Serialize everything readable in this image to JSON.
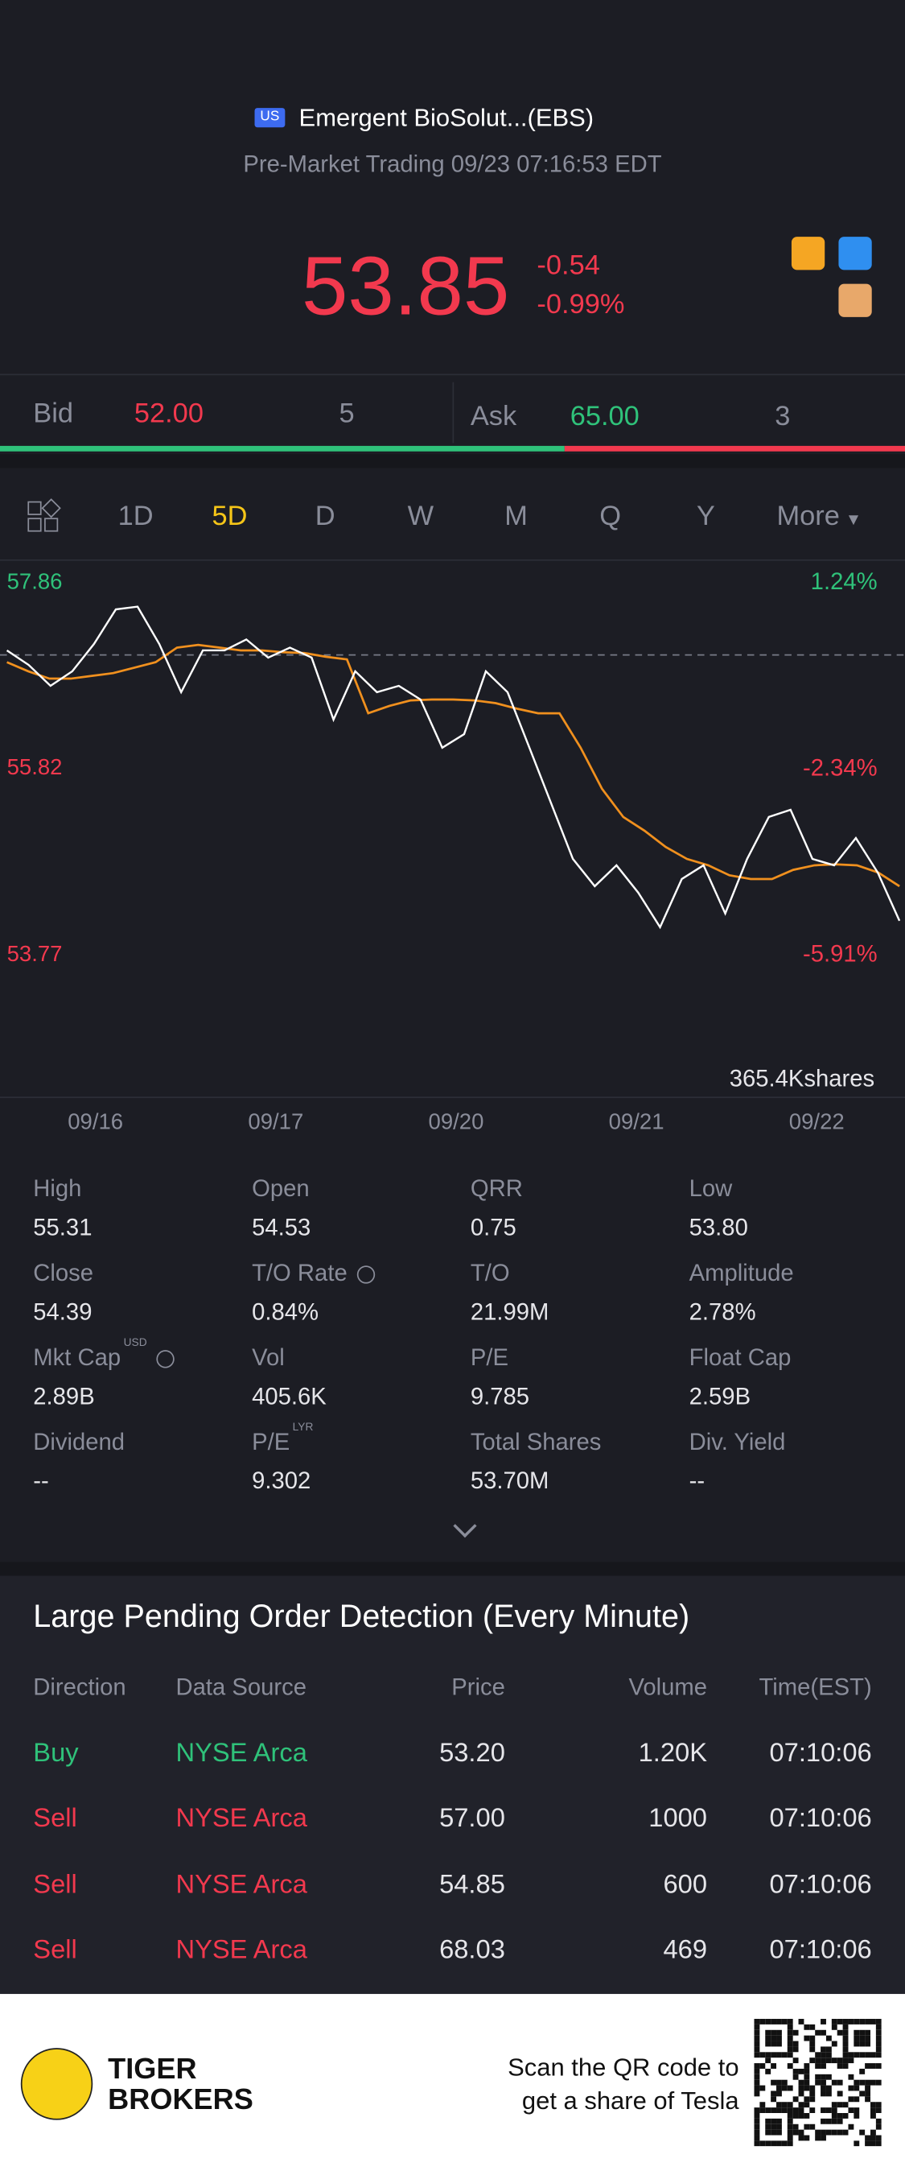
{
  "header": {
    "badge": "US",
    "name": "Emergent BioSolut...(EBS)",
    "status": "Pre-Market Trading 09/23 07:16:53 EDT"
  },
  "quote": {
    "price": "53.85",
    "change": "-0.54",
    "change_pct": "-0.99%"
  },
  "order_book": {
    "bid_label": "Bid",
    "bid_price": "52.00",
    "bid_size": "5",
    "ask_label": "Ask",
    "ask_price": "65.00",
    "ask_size": "3"
  },
  "tabs": {
    "items": [
      "1D",
      "5D",
      "D",
      "W",
      "M",
      "Q",
      "Y",
      "More"
    ],
    "active": 1
  },
  "chart_data": {
    "type": "line",
    "x_labels": [
      "09/16",
      "09/17",
      "09/20",
      "09/21",
      "09/22"
    ],
    "ylim": [
      53.77,
      57.86
    ],
    "yticks": [
      57.86,
      55.82,
      53.77
    ],
    "ytick_colors": [
      "#2fc27a",
      "#f2394e",
      "#f2394e"
    ],
    "y2lim": [
      -5.91,
      1.24
    ],
    "y2ticks": [
      {
        "value": 1.24,
        "label": "1.24%"
      },
      {
        "value": -2.34,
        "label": "-2.34%"
      },
      {
        "value": -5.91,
        "label": "-5.91%"
      }
    ],
    "series": [
      {
        "color": "#ffffff",
        "values": [
          57.12,
          56.96,
          56.73,
          56.89,
          57.19,
          57.57,
          57.6,
          57.19,
          56.66,
          57.12,
          57.12,
          57.24,
          57.04,
          57.15,
          57.04,
          56.36,
          56.89,
          56.66,
          56.73,
          56.58,
          56.05,
          56.2,
          56.89,
          56.66,
          56.05,
          55.44,
          54.83,
          54.53,
          54.76,
          54.46,
          54.08,
          54.61,
          54.76,
          54.23,
          54.83,
          55.29,
          55.37,
          54.83,
          54.76,
          55.06,
          54.68,
          54.15
        ]
      },
      {
        "color": "#f0901e",
        "values": [
          56.99,
          56.89,
          56.81,
          56.81,
          56.84,
          56.87,
          56.93,
          56.99,
          57.15,
          57.18,
          57.15,
          57.12,
          57.12,
          57.1,
          57.09,
          57.05,
          57.02,
          56.43,
          56.51,
          56.57,
          56.58,
          56.58,
          56.57,
          56.54,
          56.48,
          56.43,
          56.43,
          56.05,
          55.6,
          55.29,
          55.14,
          54.96,
          54.83,
          54.76,
          54.65,
          54.61,
          54.61,
          54.71,
          54.76,
          54.77,
          54.76,
          54.68,
          54.53
        ]
      }
    ],
    "volume_label": "365.4Kshares"
  },
  "stats": [
    {
      "label": "High",
      "value": "55.31"
    },
    {
      "label": "Open",
      "value": "54.53"
    },
    {
      "label": "QRR",
      "value": "0.75"
    },
    {
      "label": "Low",
      "value": "53.80"
    },
    {
      "label": "Close",
      "value": "54.39"
    },
    {
      "label": "T/O Rate",
      "value": "0.84%",
      "info": true
    },
    {
      "label": "T/O",
      "value": "21.99M"
    },
    {
      "label": "Amplitude",
      "value": "2.78%"
    },
    {
      "label": "Mkt Cap",
      "value": "2.89B",
      "sup": "USD",
      "info": true
    },
    {
      "label": "Vol",
      "value": "405.6K"
    },
    {
      "label": "P/E",
      "value": "9.785"
    },
    {
      "label": "Float Cap",
      "value": "2.59B"
    },
    {
      "label": "Dividend",
      "value": "--"
    },
    {
      "label": "P/E",
      "value": "9.302",
      "sup": "LYR"
    },
    {
      "label": "Total Shares",
      "value": "53.70M"
    },
    {
      "label": "Div. Yield",
      "value": "--"
    }
  ],
  "orders": {
    "title": "Large Pending Order Detection (Every Minute)",
    "columns": [
      "Direction",
      "Data Source",
      "Price",
      "Volume",
      "Time(EST)"
    ],
    "rows": [
      {
        "color": "#2fc27a",
        "cells": [
          "Buy",
          "NYSE Arca",
          "53.20",
          "1.20K",
          "07:10:06"
        ]
      },
      {
        "color": "#f2394e",
        "cells": [
          "Sell",
          "NYSE Arca",
          "57.00",
          "1000",
          "07:10:06"
        ]
      },
      {
        "color": "#f2394e",
        "cells": [
          "Sell",
          "NYSE Arca",
          "54.85",
          "600",
          "07:10:06"
        ]
      },
      {
        "color": "#f2394e",
        "cells": [
          "Sell",
          "NYSE Arca",
          "68.03",
          "469",
          "07:10:06"
        ]
      }
    ]
  },
  "footer": {
    "brand": [
      "TIGER",
      "BROKERS"
    ],
    "promo": [
      "Scan the QR code to",
      "get a share of Tesla"
    ]
  }
}
